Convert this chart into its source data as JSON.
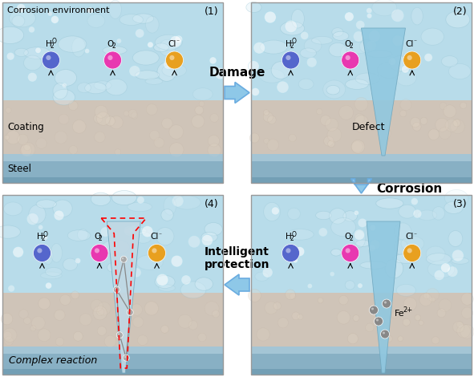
{
  "fig_width": 5.91,
  "fig_height": 4.7,
  "dpi": 100,
  "bg_color": "#ffffff",
  "h2o_color": "#5566cc",
  "o2_color": "#e838b0",
  "cl_color": "#e8a020",
  "fe_color": "#888888",
  "arrow_fill": "#8ec8e8",
  "arrow_edge": "#6aace0",
  "panel_border": "#cccccc",
  "env_color": "#b8dcea",
  "coat_color": "#cfc4b8",
  "steel_top": "#a0ccd8",
  "steel_mid": "#88b8cc",
  "steel_bot": "#6898aa",
  "defect_color": "#90c8e0",
  "panel1_title": "Corrosion environment",
  "panel1_coating": "Coating",
  "panel1_steel": "Steel",
  "panel2_defect": "Defect",
  "panel3_fe_label": "Fe",
  "panel3_fe_sup": "2+",
  "panel4_complex": "Complex reaction",
  "arrow_damage": "Damage",
  "arrow_corrosion": "Corrosion",
  "arrow_intelligent": "Intelligent\nprotection",
  "lbl1": "(1)",
  "lbl2": "(2)",
  "lbl3": "(3)",
  "lbl4": "(4)"
}
